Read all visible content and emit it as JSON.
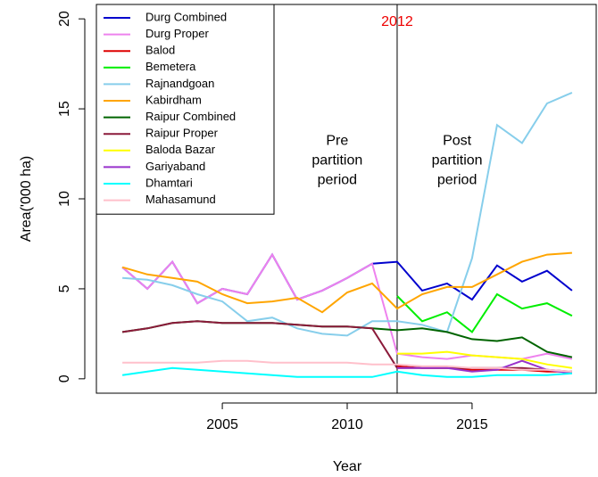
{
  "chart_data": {
    "type": "line",
    "x_label": "Year",
    "y_label": "Area('000 ha)",
    "x": [
      2001,
      2002,
      2003,
      2004,
      2005,
      2006,
      2007,
      2008,
      2009,
      2010,
      2011,
      2012,
      2013,
      2014,
      2015,
      2016,
      2017,
      2018,
      2019
    ],
    "xlim": [
      2000.28,
      2019.72
    ],
    "xticks": [
      2005,
      2010,
      2015
    ],
    "ylim": [
      -0.8,
      20.8
    ],
    "yticks": [
      0,
      5,
      10,
      15,
      20
    ],
    "vline": {
      "x": 2012,
      "label": "2012",
      "color": "#ee0000"
    },
    "annotations": [
      {
        "x": 2009.6,
        "y": 13.2,
        "lines": [
          "Pre",
          "partition",
          "period"
        ]
      },
      {
        "x": 2014.4,
        "y": 13.2,
        "lines": [
          "Post",
          "partition",
          "period"
        ]
      }
    ],
    "legend": "top-left",
    "series": [
      {
        "name": "Durg Combined",
        "color": "#0000cd",
        "values": [
          6.2,
          5.0,
          6.5,
          4.2,
          5.0,
          4.7,
          6.9,
          4.4,
          4.9,
          5.6,
          6.4,
          6.5,
          4.9,
          5.3,
          4.4,
          6.3,
          5.4,
          6.0,
          4.9
        ]
      },
      {
        "name": "Durg Proper",
        "color": "#ee82ee",
        "values": [
          6.2,
          5.0,
          6.5,
          4.2,
          5.0,
          4.7,
          6.9,
          4.4,
          4.9,
          5.6,
          6.4,
          1.4,
          1.2,
          1.1,
          1.3,
          1.2,
          1.1,
          1.4,
          1.1
        ]
      },
      {
        "name": "Balod",
        "color": "#dd0000",
        "values": [
          null,
          null,
          null,
          null,
          null,
          null,
          null,
          null,
          null,
          null,
          null,
          0.7,
          0.6,
          0.6,
          0.5,
          0.5,
          0.5,
          0.4,
          0.4
        ]
      },
      {
        "name": "Bemetera",
        "color": "#00ee00",
        "values": [
          null,
          null,
          null,
          null,
          null,
          null,
          null,
          null,
          null,
          null,
          null,
          4.6,
          3.2,
          3.7,
          2.6,
          4.7,
          3.9,
          4.2,
          3.5
        ]
      },
      {
        "name": "Rajnandgoan",
        "color": "#87ceeb",
        "values": [
          5.6,
          5.5,
          5.2,
          4.7,
          4.3,
          3.2,
          3.4,
          2.8,
          2.5,
          2.4,
          3.2,
          3.2,
          3.0,
          2.6,
          6.7,
          14.1,
          13.1,
          15.3,
          15.9
        ]
      },
      {
        "name": "Kabirdham",
        "color": "#ffa500",
        "values": [
          6.2,
          5.8,
          5.6,
          5.4,
          4.7,
          4.2,
          4.3,
          4.5,
          3.7,
          4.8,
          5.3,
          3.9,
          4.7,
          5.1,
          5.1,
          5.8,
          6.5,
          6.9,
          7.0
        ]
      },
      {
        "name": "Raipur Combined",
        "color": "#006400",
        "values": [
          2.6,
          2.8,
          3.1,
          3.2,
          3.1,
          3.1,
          3.1,
          3.0,
          2.9,
          2.9,
          2.8,
          2.7,
          2.8,
          2.6,
          2.2,
          2.1,
          2.3,
          1.5,
          1.2
        ]
      },
      {
        "name": "Raipur Proper",
        "color": "#8b1a3a",
        "values": [
          2.6,
          2.8,
          3.1,
          3.2,
          3.1,
          3.1,
          3.1,
          3.0,
          2.9,
          2.9,
          2.8,
          0.6,
          0.6,
          0.6,
          0.6,
          0.6,
          0.6,
          0.5,
          0.4
        ]
      },
      {
        "name": "Baloda Bazar",
        "color": "#ffff00",
        "values": [
          null,
          null,
          null,
          null,
          null,
          null,
          null,
          null,
          null,
          null,
          null,
          1.4,
          1.4,
          1.5,
          1.3,
          1.2,
          1.1,
          0.8,
          0.6
        ]
      },
      {
        "name": "Gariyaband",
        "color": "#9932cc",
        "values": [
          null,
          null,
          null,
          null,
          null,
          null,
          null,
          null,
          null,
          null,
          null,
          0.6,
          0.6,
          0.6,
          0.4,
          0.5,
          1.0,
          0.5,
          0.3
        ]
      },
      {
        "name": "Dhamtari",
        "color": "#00ffff",
        "values": [
          0.2,
          0.4,
          0.6,
          0.5,
          0.4,
          0.3,
          0.2,
          0.1,
          0.1,
          0.1,
          0.1,
          0.4,
          0.2,
          0.1,
          0.1,
          0.2,
          0.2,
          0.2,
          0.3
        ]
      },
      {
        "name": "Mahasamund",
        "color": "#ffc0cb",
        "values": [
          0.9,
          0.9,
          0.9,
          0.9,
          1.0,
          1.0,
          0.9,
          0.9,
          0.9,
          0.9,
          0.8,
          0.8,
          0.7,
          0.7,
          0.6,
          0.6,
          0.5,
          0.5,
          0.4
        ]
      }
    ]
  }
}
